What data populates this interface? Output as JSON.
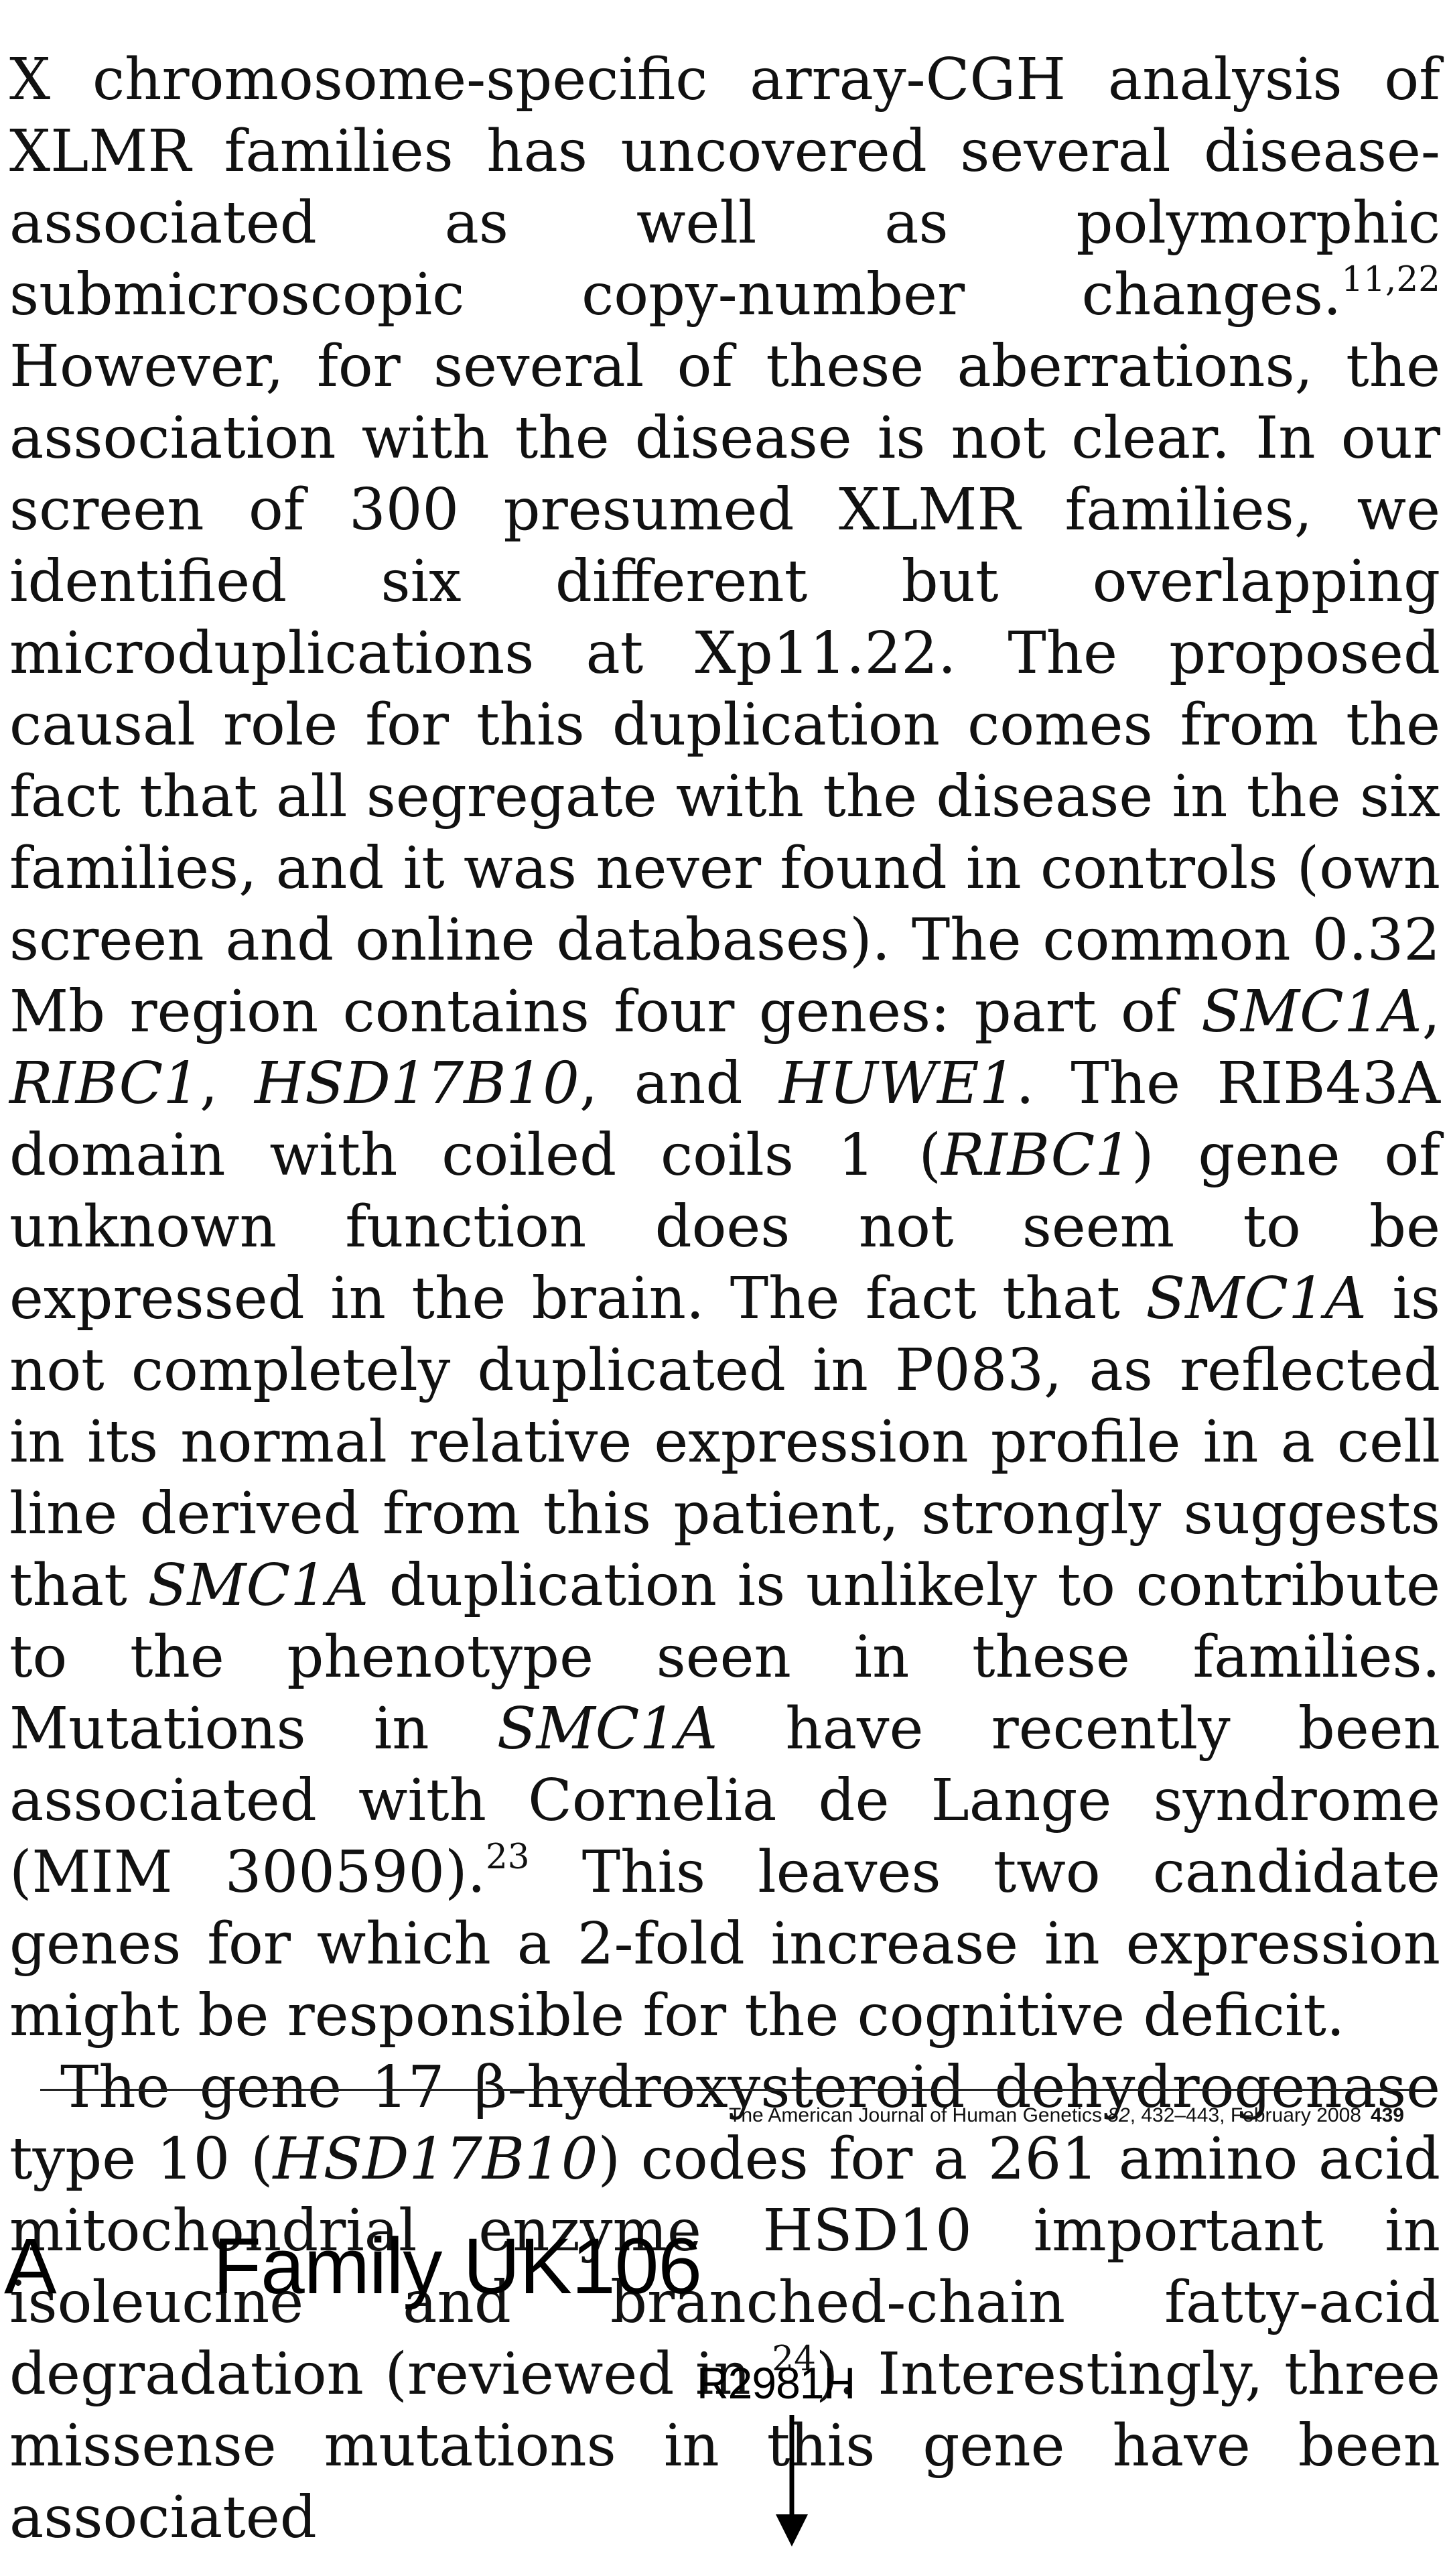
{
  "paragraphs": [
    {
      "segments": [
        {
          "text": "X chromosome-specific array-CGH analysis of XLMR families has uncovered several disease-associated as well as polymorphic submicroscopic copy-number changes."
        },
        {
          "text": "11,22",
          "sup": true
        },
        {
          "text": " However, for several of these aberrations, the association with the disease is not clear. In our screen of 300 presumed XLMR families, we identified six different but overlapping microduplications at Xp11.22. The proposed causal role for this duplication comes from the fact that all segregate with the disease in the six families, and it was never found in controls (own screen and online databases). The common 0.32 Mb region contains four genes: part of "
        },
        {
          "text": "SMC1A",
          "italic": true
        },
        {
          "text": ", "
        },
        {
          "text": "RIBC1",
          "italic": true
        },
        {
          "text": ", "
        },
        {
          "text": "HSD17B10",
          "italic": true
        },
        {
          "text": ", and "
        },
        {
          "text": "HUWE1",
          "italic": true
        },
        {
          "text": ". The RIB43A domain with coiled coils 1 ("
        },
        {
          "text": "RIBC1",
          "italic": true
        },
        {
          "text": ") gene of unknown function does not seem to be expressed in the brain. The fact that "
        },
        {
          "text": "SMC1A",
          "italic": true
        },
        {
          "text": " is not completely duplicated in P083, as reflected in its normal relative expression profile in a cell line derived from this patient, strongly suggests that "
        },
        {
          "text": "SMC1A",
          "italic": true
        },
        {
          "text": " duplication is unlikely to contribute to the phenotype seen in these families. Mutations in "
        },
        {
          "text": "SMC1A",
          "italic": true
        },
        {
          "text": " have recently been associated with Cornelia de Lange syndrome (MIM 300590)."
        },
        {
          "text": "23",
          "sup": true
        },
        {
          "text": " This leaves two candidate genes for which a 2-fold increase in expression might be responsible for the cognitive deficit."
        }
      ]
    },
    {
      "segments": [
        {
          "text": "The gene 17 β-hydroxysteroid dehydrogenase type 10 ("
        },
        {
          "text": "HSD17B10",
          "italic": true
        },
        {
          "text": ") codes for a 261 amino acid mitochondrial enzyme HSD10 important in isoleucine and branched-chain fatty-acid degradation (reviewed in "
        },
        {
          "text": "24",
          "sup": true
        },
        {
          "text": "). Interestingly, three missense mutations in this gene have been associated"
        }
      ]
    }
  ],
  "footer": {
    "journal": "The American Journal of Human Genetics ",
    "volume": "82",
    "details": ", 432–443, February 2008",
    "page": "439"
  },
  "figure": {
    "panel_label": "A",
    "title": "Family UK106",
    "mutation": "R2981H",
    "colors": {
      "text": "#000000",
      "arrow": "#000000"
    }
  }
}
